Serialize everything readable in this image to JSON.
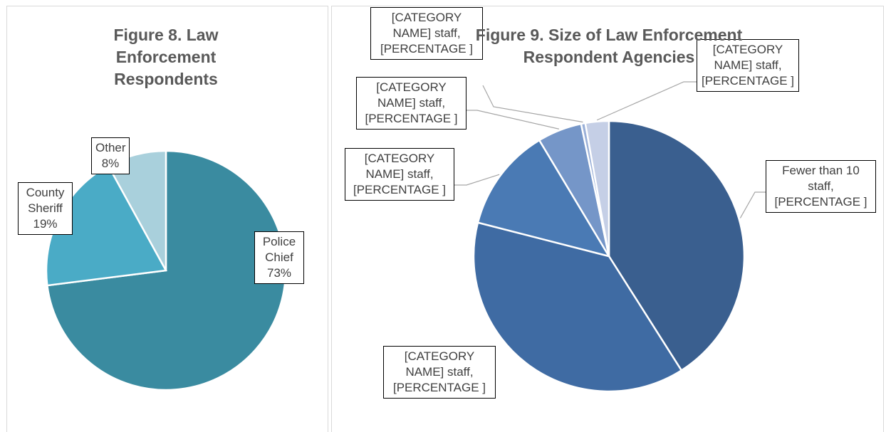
{
  "chart_data": [
    {
      "type": "pie",
      "title": "Figure 8. Law Enforcement Respondents",
      "categories": [
        "Police Chief",
        "County Sheriff",
        "Other"
      ],
      "values": [
        73,
        19,
        8
      ],
      "value_labels": [
        "73%",
        "19%",
        "8%"
      ],
      "colors": [
        "#3a8ba0",
        "#4aabc6",
        "#a9d0dc"
      ]
    },
    {
      "type": "pie",
      "title": "Figure 9. Size of Law Enforcement Respondent Agencies",
      "values": [
        41,
        38,
        12.4,
        5.3,
        0.5,
        2.8
      ],
      "data_labels": [
        "Fewer than 10 staff, [PERCENTAGE ]",
        "[CATEGORY NAME] staff, [PERCENTAGE ]",
        "[CATEGORY NAME] staff, [PERCENTAGE ]",
        "[CATEGORY NAME] staff, [PERCENTAGE ]",
        "[CATEGORY NAME] staff, [PERCENTAGE ]",
        "[CATEGORY NAME] staff, [PERCENTAGE ]"
      ],
      "colors": [
        "#3a5f8f",
        "#3f6ba3",
        "#4a7ab4",
        "#7596c8",
        "#9ab0d8",
        "#c5cfe6"
      ]
    }
  ]
}
